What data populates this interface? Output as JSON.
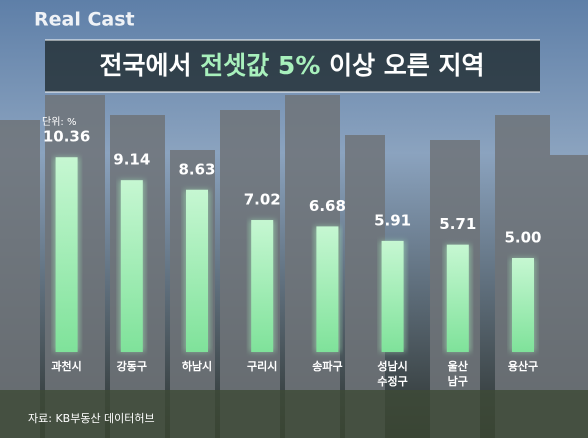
{
  "brand": "Real Cast",
  "chart_data": {
    "type": "bar",
    "title": [
      "전국에서",
      "전셋값 5%",
      "이상 오른 지역"
    ],
    "unit": "단위: %",
    "categories": [
      "과천시",
      "강동구",
      "하남시",
      "구리시",
      "송파구",
      "성남시\n수정구",
      "울산\n남구",
      "용산구"
    ],
    "values": [
      10.36,
      9.14,
      8.63,
      7.02,
      6.68,
      5.91,
      5.71,
      5.0
    ],
    "value_labels": [
      "10.36",
      "9.14",
      "8.63",
      "7.02",
      "6.68",
      "5.91",
      "5.71",
      "5.00"
    ],
    "color": "#a8f0bc",
    "source": "자료: KB부동산 데이터허브"
  }
}
